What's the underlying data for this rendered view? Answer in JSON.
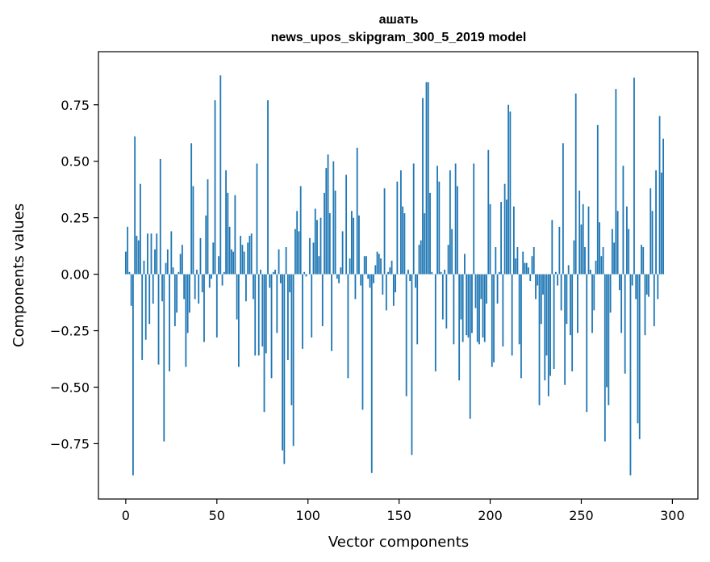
{
  "chart_data": {
    "type": "bar",
    "title_line1": "ашать",
    "title_line2": "news_upos_skipgram_300_5_2019 model",
    "xlabel": "Vector components",
    "ylabel": "Components values",
    "xlim": [
      -15,
      314
    ],
    "ylim": [
      -0.995,
      0.985
    ],
    "x_ticks": [
      0,
      50,
      100,
      150,
      200,
      250,
      300
    ],
    "x_tick_labels": [
      "0",
      "50",
      "100",
      "150",
      "200",
      "250",
      "300"
    ],
    "y_ticks": [
      -0.75,
      -0.5,
      -0.25,
      0.0,
      0.25,
      0.5,
      0.75
    ],
    "y_tick_labels": [
      "−0.75",
      "−0.50",
      "−0.25",
      "0.00",
      "0.25",
      "0.50",
      "0.75"
    ],
    "bar_color": "#1f77b4",
    "values": [
      0.1,
      0.21,
      0.01,
      -0.14,
      -0.89,
      0.61,
      0.17,
      0.15,
      0.4,
      -0.38,
      0.06,
      -0.29,
      0.18,
      -0.22,
      0.18,
      -0.13,
      0.11,
      0.18,
      -0.4,
      0.51,
      -0.12,
      -0.74,
      0.05,
      0.11,
      -0.43,
      0.19,
      0.03,
      -0.23,
      -0.17,
      0.01,
      0.09,
      0.13,
      -0.11,
      -0.41,
      -0.26,
      -0.17,
      0.58,
      0.39,
      -0.11,
      0.02,
      -0.13,
      0.16,
      -0.08,
      -0.3,
      0.26,
      0.42,
      -0.06,
      -0.02,
      0.14,
      0.77,
      -0.28,
      0.08,
      0.88,
      -0.05,
      0.01,
      0.46,
      0.36,
      0.21,
      0.11,
      0.1,
      0.35,
      -0.2,
      -0.41,
      0.17,
      0.13,
      0.1,
      -0.12,
      0.14,
      0.17,
      0.18,
      -0.11,
      -0.36,
      0.49,
      -0.36,
      0.02,
      -0.32,
      -0.61,
      -0.35,
      0.77,
      -0.06,
      -0.46,
      0.01,
      0.02,
      -0.26,
      0.11,
      -0.04,
      -0.78,
      -0.84,
      0.12,
      -0.38,
      -0.08,
      -0.58,
      -0.76,
      0.2,
      0.28,
      0.19,
      0.39,
      -0.33,
      0.01,
      -0.01,
      0.0,
      0.16,
      -0.28,
      0.14,
      0.29,
      0.24,
      0.08,
      0.25,
      -0.23,
      0.36,
      0.47,
      0.53,
      0.27,
      -0.34,
      0.5,
      0.37,
      -0.02,
      -0.04,
      0.03,
      0.19,
      0.0,
      0.44,
      -0.46,
      0.07,
      0.28,
      0.25,
      -0.11,
      0.56,
      0.26,
      -0.05,
      -0.6,
      0.08,
      0.08,
      -0.02,
      -0.06,
      -0.88,
      -0.04,
      0.04,
      0.1,
      0.09,
      0.07,
      -0.09,
      0.38,
      -0.16,
      0.01,
      0.03,
      0.06,
      -0.14,
      -0.08,
      0.41,
      0.0,
      0.46,
      0.3,
      0.27,
      -0.54,
      0.02,
      -0.03,
      -0.8,
      0.49,
      -0.06,
      -0.31,
      0.13,
      0.15,
      0.78,
      0.27,
      0.85,
      0.85,
      0.36,
      0.01,
      0.0,
      -0.43,
      0.48,
      0.41,
      0.01,
      -0.2,
      0.02,
      -0.24,
      0.13,
      0.46,
      0.2,
      -0.31,
      0.49,
      0.39,
      -0.47,
      -0.2,
      -0.3,
      0.09,
      -0.27,
      -0.28,
      -0.64,
      -0.26,
      0.49,
      -0.15,
      -0.3,
      -0.31,
      -0.11,
      -0.28,
      -0.3,
      -0.13,
      0.55,
      0.31,
      -0.41,
      -0.39,
      0.12,
      -0.13,
      0.01,
      0.32,
      -0.32,
      0.4,
      0.33,
      0.75,
      0.72,
      -0.36,
      0.3,
      0.07,
      0.12,
      -0.31,
      -0.46,
      0.1,
      0.05,
      0.05,
      0.03,
      -0.03,
      0.08,
      0.12,
      -0.11,
      -0.05,
      -0.58,
      -0.22,
      -0.09,
      -0.47,
      -0.36,
      -0.54,
      -0.45,
      0.24,
      -0.42,
      0.01,
      -0.05,
      0.21,
      -0.16,
      0.58,
      -0.49,
      -0.22,
      0.04,
      -0.27,
      -0.43,
      0.15,
      0.8,
      -0.26,
      0.37,
      0.22,
      0.31,
      0.12,
      -0.61,
      0.3,
      0.02,
      -0.26,
      -0.16,
      0.06,
      0.66,
      0.23,
      0.08,
      0.12,
      -0.74,
      -0.5,
      -0.58,
      -0.17,
      0.2,
      0.14,
      0.82,
      0.28,
      -0.07,
      -0.26,
      0.48,
      -0.44,
      0.3,
      0.2,
      -0.89,
      -0.05,
      0.87,
      -0.11,
      -0.66,
      -0.73,
      0.13,
      0.12,
      -0.27,
      -0.09,
      -0.1,
      0.38,
      0.28,
      -0.23,
      0.46,
      -0.11,
      0.7,
      0.45,
      0.6
    ]
  }
}
